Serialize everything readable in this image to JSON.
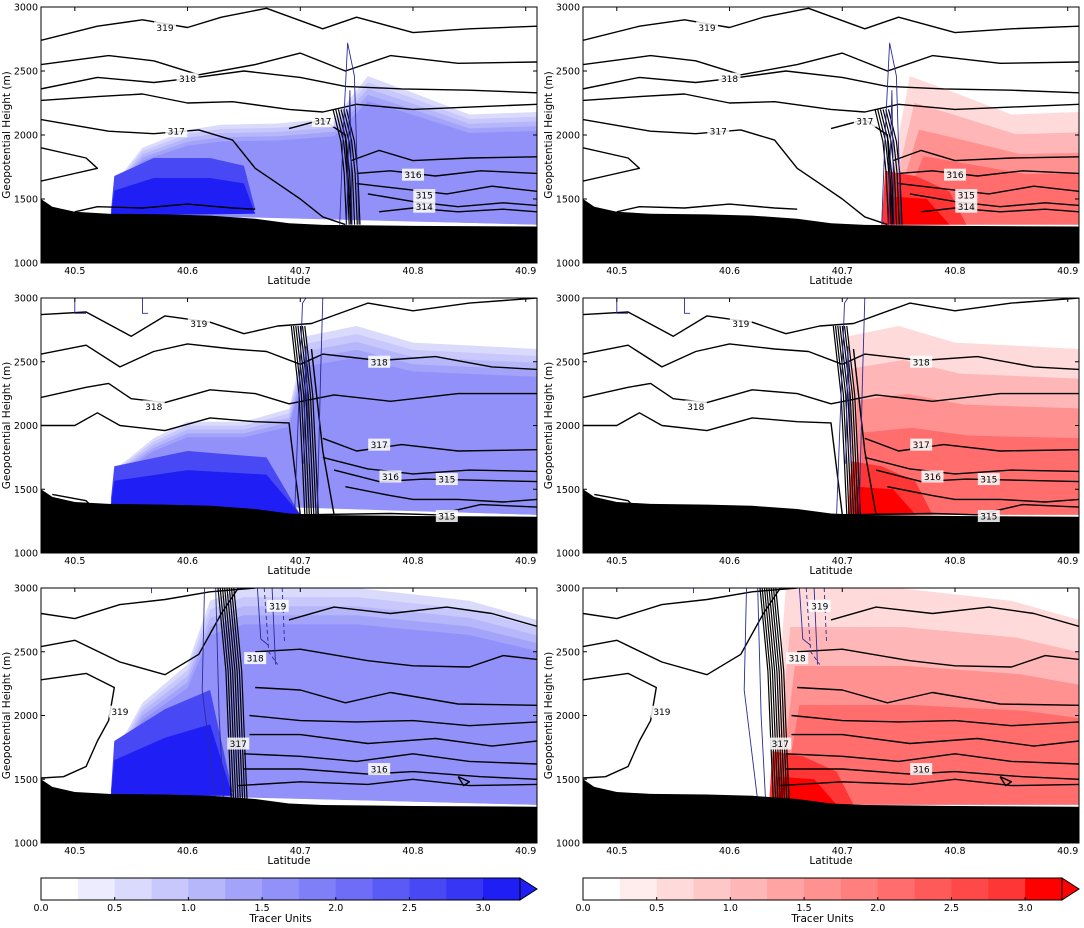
{
  "colors": {
    "blue_ramp": [
      "#ffffff",
      "#ececfe",
      "#dadafd",
      "#c8c8fc",
      "#b6b6fb",
      "#a3a3fa",
      "#9191f9",
      "#7f7ff8",
      "#6d6df7",
      "#5a5af6",
      "#4848f5",
      "#3636f4",
      "#1f1ff5"
    ],
    "red_ramp": [
      "#ffffff",
      "#ffecec",
      "#ffdada",
      "#ffc8c8",
      "#ffb6b6",
      "#ffa3a3",
      "#ff9191",
      "#ff7f7f",
      "#ff6d6d",
      "#ff5a5a",
      "#ff4848",
      "#ff3636",
      "#ff0000"
    ],
    "terrain": "#000000",
    "theta_contour": "#000000",
    "wind_contour": "#2b2b9a"
  },
  "chart_data": [
    {
      "panel": "top-left",
      "type": "heatmap",
      "tracer": "blue",
      "xlabel": "Latitude",
      "ylabel": "Geopotential Height (m)",
      "xlim": [
        40.47,
        40.91
      ],
      "ylim": [
        1000,
        3000
      ],
      "xticks": [
        "40.5",
        "40.6",
        "40.7",
        "40.8",
        "40.9"
      ],
      "yticks": [
        "1000",
        "1500",
        "2000",
        "2500",
        "3000"
      ],
      "contour_labels": [
        {
          "text": "319",
          "x": 40.58,
          "y": 2840
        },
        {
          "text": "318",
          "x": 40.6,
          "y": 2440
        },
        {
          "text": "317",
          "x": 40.59,
          "y": 2030
        },
        {
          "text": "317",
          "x": 40.72,
          "y": 2110
        },
        {
          "text": "316",
          "x": 40.8,
          "y": 1690
        },
        {
          "text": "315",
          "x": 40.81,
          "y": 1530
        },
        {
          "text": "314",
          "x": 40.81,
          "y": 1440
        }
      ]
    },
    {
      "panel": "top-right",
      "type": "heatmap",
      "tracer": "red",
      "xlabel": "Latitude",
      "ylabel": "Geopotential Height (m)",
      "xlim": [
        40.47,
        40.91
      ],
      "ylim": [
        1000,
        3000
      ],
      "xticks": [
        "40.5",
        "40.6",
        "40.7",
        "40.8",
        "40.9"
      ],
      "yticks": [
        "1000",
        "1500",
        "2000",
        "2500",
        "3000"
      ],
      "contour_labels": [
        {
          "text": "319",
          "x": 40.58,
          "y": 2840
        },
        {
          "text": "318",
          "x": 40.6,
          "y": 2440
        },
        {
          "text": "317",
          "x": 40.59,
          "y": 2030
        },
        {
          "text": "317",
          "x": 40.72,
          "y": 2110
        },
        {
          "text": "316",
          "x": 40.8,
          "y": 1690
        },
        {
          "text": "315",
          "x": 40.81,
          "y": 1530
        },
        {
          "text": "314",
          "x": 40.81,
          "y": 1440
        }
      ]
    },
    {
      "panel": "middle-left",
      "type": "heatmap",
      "tracer": "blue",
      "xlabel": "Latitude",
      "ylabel": "Geopotential Height (m)",
      "xlim": [
        40.47,
        40.91
      ],
      "ylim": [
        1000,
        3000
      ],
      "xticks": [
        "40.5",
        "40.6",
        "40.7",
        "40.8",
        "40.9"
      ],
      "yticks": [
        "1000",
        "1500",
        "2000",
        "2500",
        "3000"
      ],
      "contour_labels": [
        {
          "text": "319",
          "x": 40.61,
          "y": 2800
        },
        {
          "text": "318",
          "x": 40.77,
          "y": 2500
        },
        {
          "text": "318",
          "x": 40.57,
          "y": 2150
        },
        {
          "text": "317",
          "x": 40.77,
          "y": 1850
        },
        {
          "text": "316",
          "x": 40.78,
          "y": 1600
        },
        {
          "text": "315",
          "x": 40.83,
          "y": 1580
        },
        {
          "text": "315",
          "x": 40.83,
          "y": 1290
        }
      ]
    },
    {
      "panel": "middle-right",
      "type": "heatmap",
      "tracer": "red",
      "xlabel": "Latitude",
      "ylabel": "Geopotential Height (m)",
      "xlim": [
        40.47,
        40.91
      ],
      "ylim": [
        1000,
        3000
      ],
      "xticks": [
        "40.5",
        "40.6",
        "40.7",
        "40.8",
        "40.9"
      ],
      "yticks": [
        "1000",
        "1500",
        "2000",
        "2500",
        "3000"
      ],
      "contour_labels": [
        {
          "text": "319",
          "x": 40.61,
          "y": 2800
        },
        {
          "text": "318",
          "x": 40.77,
          "y": 2500
        },
        {
          "text": "318",
          "x": 40.57,
          "y": 2150
        },
        {
          "text": "317",
          "x": 40.77,
          "y": 1850
        },
        {
          "text": "316",
          "x": 40.78,
          "y": 1600
        },
        {
          "text": "315",
          "x": 40.83,
          "y": 1580
        },
        {
          "text": "315",
          "x": 40.83,
          "y": 1290
        }
      ]
    },
    {
      "panel": "bottom-left",
      "type": "heatmap",
      "tracer": "blue",
      "xlabel": "Latitude",
      "ylabel": "Geopotential Height (m)",
      "xlim": [
        40.47,
        40.91
      ],
      "ylim": [
        1000,
        3000
      ],
      "xticks": [
        "40.5",
        "40.6",
        "40.7",
        "40.8",
        "40.9"
      ],
      "yticks": [
        "1000",
        "1500",
        "2000",
        "2500",
        "3000"
      ],
      "contour_labels": [
        {
          "text": "319",
          "x": 40.68,
          "y": 2860
        },
        {
          "text": "318",
          "x": 40.66,
          "y": 2450
        },
        {
          "text": "319",
          "x": 40.54,
          "y": 2030
        },
        {
          "text": "317",
          "x": 40.645,
          "y": 1780
        },
        {
          "text": "316",
          "x": 40.77,
          "y": 1580
        }
      ]
    },
    {
      "panel": "bottom-right",
      "type": "heatmap",
      "tracer": "red",
      "xlabel": "Latitude",
      "ylabel": "Geopotential Height (m)",
      "xlim": [
        40.47,
        40.91
      ],
      "ylim": [
        1000,
        3000
      ],
      "xticks": [
        "40.5",
        "40.6",
        "40.7",
        "40.8",
        "40.9"
      ],
      "yticks": [
        "1000",
        "1500",
        "2000",
        "2500",
        "3000"
      ],
      "contour_labels": [
        {
          "text": "319",
          "x": 40.68,
          "y": 2860
        },
        {
          "text": "318",
          "x": 40.66,
          "y": 2450
        },
        {
          "text": "319",
          "x": 40.54,
          "y": 2030
        },
        {
          "text": "317",
          "x": 40.645,
          "y": 1780
        },
        {
          "text": "316",
          "x": 40.77,
          "y": 1580
        }
      ]
    },
    {
      "panel": "colorbar-left",
      "type": "colorbar",
      "tracer": "blue",
      "label": "Tracer Units",
      "ticks": [
        "0.0",
        "0.5",
        "1.0",
        "1.5",
        "2.0",
        "2.5",
        "3.0"
      ],
      "range": [
        0,
        3.25
      ],
      "extend": "max"
    },
    {
      "panel": "colorbar-right",
      "type": "colorbar",
      "tracer": "red",
      "label": "Tracer Units",
      "ticks": [
        "0.0",
        "0.5",
        "1.0",
        "1.5",
        "2.0",
        "2.5",
        "3.0"
      ],
      "range": [
        0,
        3.25
      ],
      "extend": "max"
    }
  ]
}
